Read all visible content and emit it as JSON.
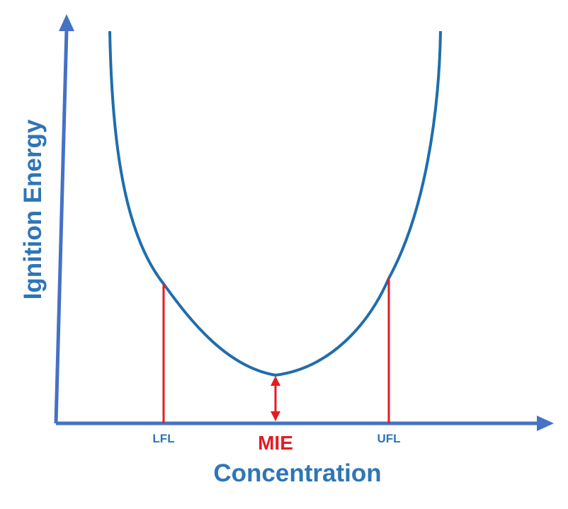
{
  "colors": {
    "axis": "#4472C4",
    "curve": "#1F6DAD",
    "marker": "#E51B23",
    "axis_title": "#2E75B6",
    "tick_label": "#2E75B6",
    "mie_label": "#E51B23"
  },
  "diagram": {
    "y_axis_title": "Ignition Energy",
    "x_axis_title": "Concentration",
    "lfl_label": "LFL",
    "ufl_label": "UFL",
    "mie_label": "MIE"
  }
}
